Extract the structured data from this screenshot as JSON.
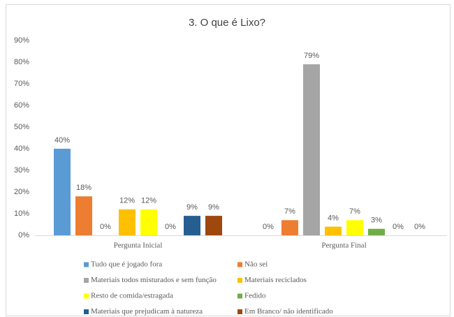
{
  "chart_data": {
    "type": "bar",
    "title": "3. O que é Lixo?",
    "categories": [
      "Pergunta Inicial",
      "Pergunta Final"
    ],
    "series": [
      {
        "name": "Tudo que é jogado fora",
        "color": "#5b9bd5",
        "values": [
          40,
          0
        ],
        "value_labels": [
          "40%",
          "0%"
        ]
      },
      {
        "name": "Não sei",
        "color": "#ed7d31",
        "values": [
          18,
          7
        ],
        "value_labels": [
          "18%",
          "7%"
        ]
      },
      {
        "name": "Materiais todos misturados e sem função",
        "color": "#a5a5a5",
        "values": [
          0,
          79
        ],
        "value_labels": [
          "0%",
          "79%"
        ]
      },
      {
        "name": "Materiais reciclados",
        "color": "#ffc000",
        "values": [
          12,
          4
        ],
        "value_labels": [
          "12%",
          "4%"
        ]
      },
      {
        "name": "Resto de comida/estragada",
        "color": "#ffff00",
        "values": [
          12,
          7
        ],
        "value_labels": [
          "12%",
          "7%"
        ]
      },
      {
        "name": "Fedido",
        "color": "#70ad47",
        "values": [
          0,
          3
        ],
        "value_labels": [
          "0%",
          "3%"
        ]
      },
      {
        "name": "Materiais que prejudicam à natureza",
        "color": "#255e91",
        "values": [
          9,
          0
        ],
        "value_labels": [
          "9%",
          "0%"
        ]
      },
      {
        "name": "Em Branco/ não identificado",
        "color": "#9e480e",
        "values": [
          9,
          0
        ],
        "value_labels": [
          "9%",
          "0%"
        ]
      }
    ],
    "ylim": [
      0,
      90
    ],
    "yticks": [
      {
        "value": 0,
        "label": "0%"
      },
      {
        "value": 10,
        "label": "10%"
      },
      {
        "value": 20,
        "label": "20%"
      },
      {
        "value": 30,
        "label": "30%"
      },
      {
        "value": 40,
        "label": "40%"
      },
      {
        "value": 50,
        "label": "50%"
      },
      {
        "value": 60,
        "label": "60%"
      },
      {
        "value": 70,
        "label": "70%"
      },
      {
        "value": 80,
        "label": "80%"
      },
      {
        "value": 90,
        "label": "90%"
      }
    ],
    "grid": false,
    "legend": "bottom"
  }
}
